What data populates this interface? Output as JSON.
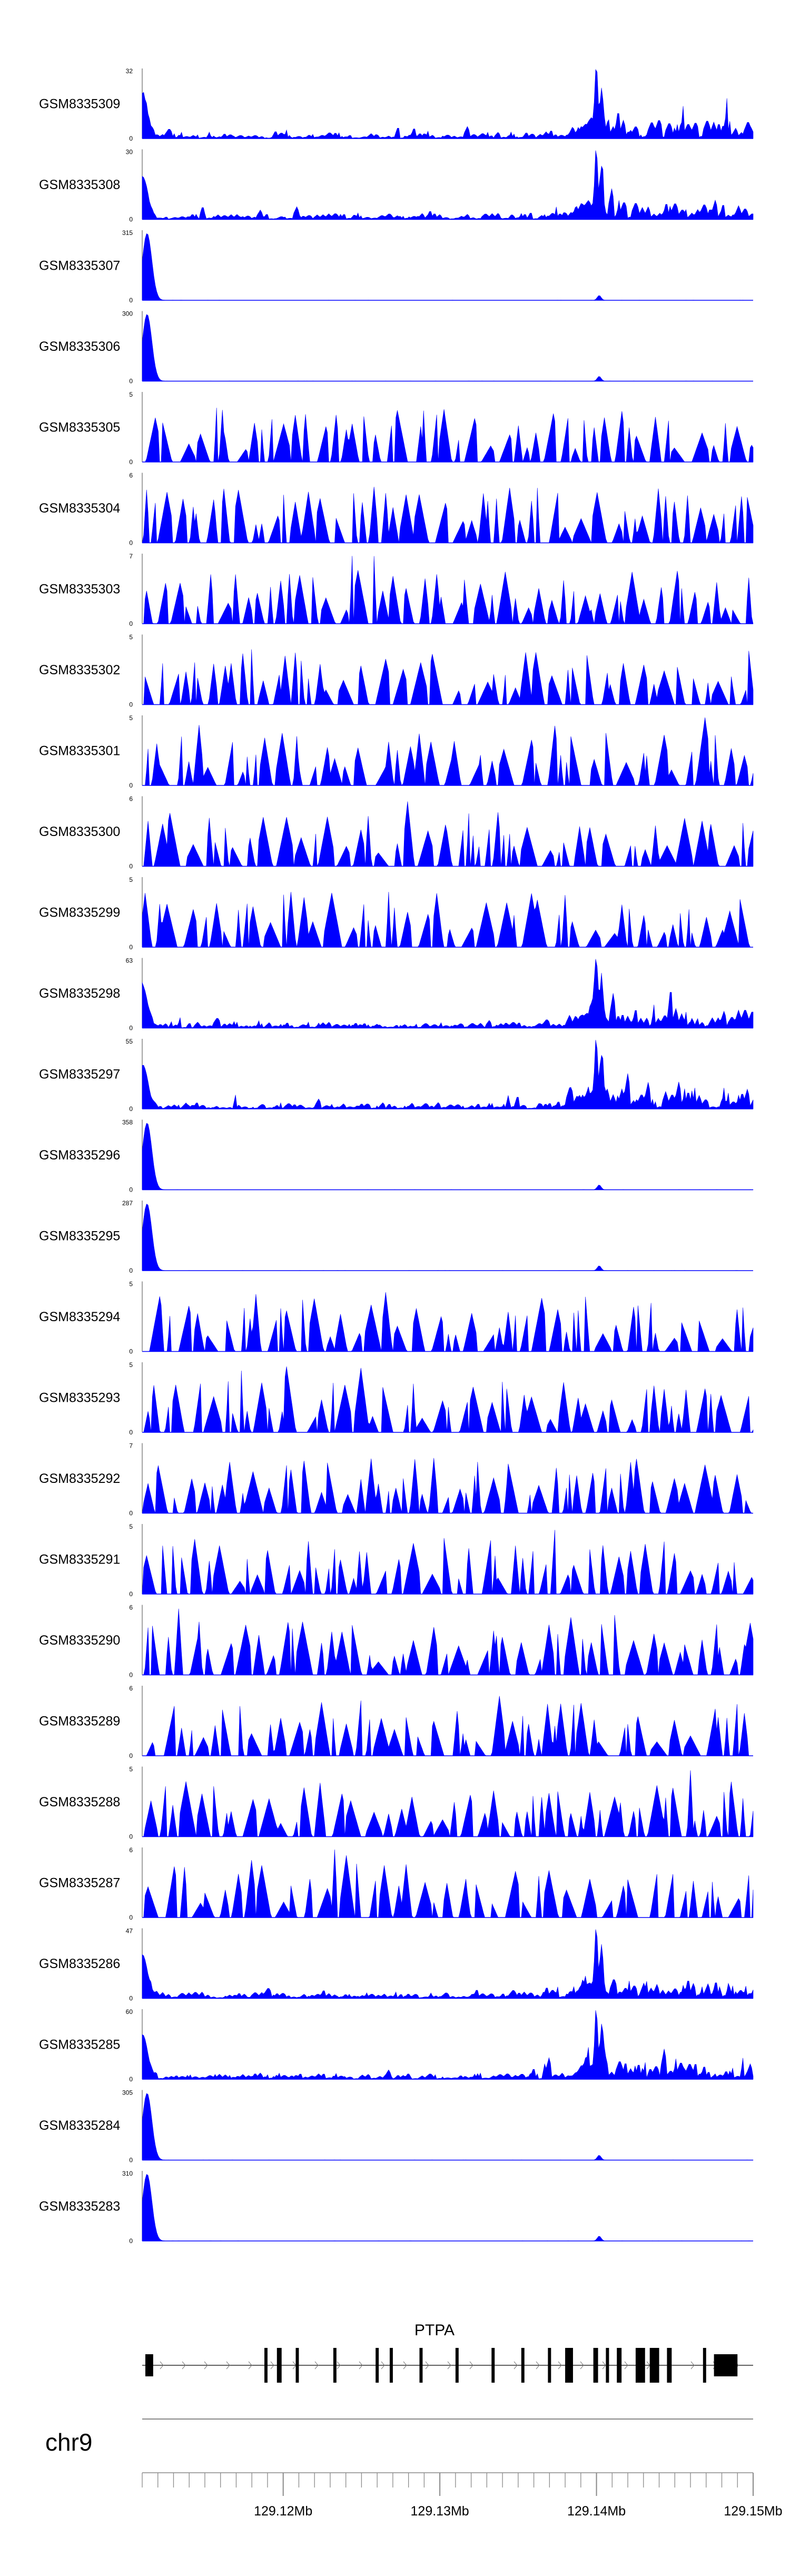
{
  "chart_data": {
    "type": "area",
    "title": "",
    "region": {
      "chromosome": "chr9",
      "xlim": [
        129.111,
        129.15
      ],
      "x_ticks": [
        129.12,
        129.13,
        129.14,
        129.15
      ],
      "x_tick_labels": [
        "129.12Mb",
        "129.13Mb",
        "129.14Mb",
        "129.15Mb"
      ]
    },
    "tracks": [
      {
        "name": "GSM8335309",
        "ymin": 0,
        "ymax": 32,
        "ylabel_max": "32",
        "ylabel_min": "0",
        "profile": "atac"
      },
      {
        "name": "GSM8335308",
        "ymin": 0,
        "ymax": 30,
        "ylabel_max": "30",
        "ylabel_min": "0",
        "profile": "atac"
      },
      {
        "name": "GSM8335307",
        "ymin": 0,
        "ymax": 315,
        "ylabel_max": "315",
        "ylabel_min": "0",
        "profile": "spike"
      },
      {
        "name": "GSM8335306",
        "ymin": 0,
        "ymax": 300,
        "ylabel_max": "300",
        "ylabel_min": "0",
        "profile": "spike"
      },
      {
        "name": "GSM8335305",
        "ymin": 0,
        "ymax": 5,
        "ylabel_max": "5",
        "ylabel_min": "0",
        "profile": "noise"
      },
      {
        "name": "GSM8335304",
        "ymin": 0,
        "ymax": 6,
        "ylabel_max": "6",
        "ylabel_min": "0",
        "profile": "noise"
      },
      {
        "name": "GSM8335303",
        "ymin": 0,
        "ymax": 7,
        "ylabel_max": "7",
        "ylabel_min": "0",
        "profile": "noise"
      },
      {
        "name": "GSM8335302",
        "ymin": 0,
        "ymax": 5,
        "ylabel_max": "5",
        "ylabel_min": "0",
        "profile": "noise"
      },
      {
        "name": "GSM8335301",
        "ymin": 0,
        "ymax": 5,
        "ylabel_max": "5",
        "ylabel_min": "0",
        "profile": "noise"
      },
      {
        "name": "GSM8335300",
        "ymin": 0,
        "ymax": 6,
        "ylabel_max": "6",
        "ylabel_min": "0",
        "profile": "noise"
      },
      {
        "name": "GSM8335299",
        "ymin": 0,
        "ymax": 5,
        "ylabel_max": "5",
        "ylabel_min": "0",
        "profile": "noise"
      },
      {
        "name": "GSM8335298",
        "ymin": 0,
        "ymax": 63,
        "ylabel_max": "63",
        "ylabel_min": "0",
        "profile": "atac"
      },
      {
        "name": "GSM8335297",
        "ymin": 0,
        "ymax": 55,
        "ylabel_max": "55",
        "ylabel_min": "0",
        "profile": "atac"
      },
      {
        "name": "GSM8335296",
        "ymin": 0,
        "ymax": 358,
        "ylabel_max": "358",
        "ylabel_min": "0",
        "profile": "spike"
      },
      {
        "name": "GSM8335295",
        "ymin": 0,
        "ymax": 287,
        "ylabel_max": "287",
        "ylabel_min": "0",
        "profile": "spike"
      },
      {
        "name": "GSM8335294",
        "ymin": 0,
        "ymax": 5,
        "ylabel_max": "5",
        "ylabel_min": "0",
        "profile": "noise"
      },
      {
        "name": "GSM8335293",
        "ymin": 0,
        "ymax": 5,
        "ylabel_max": "5",
        "ylabel_min": "0",
        "profile": "noise"
      },
      {
        "name": "GSM8335292",
        "ymin": 0,
        "ymax": 7,
        "ylabel_max": "7",
        "ylabel_min": "0",
        "profile": "noise"
      },
      {
        "name": "GSM8335291",
        "ymin": 0,
        "ymax": 5,
        "ylabel_max": "5",
        "ylabel_min": "0",
        "profile": "noise"
      },
      {
        "name": "GSM8335290",
        "ymin": 0,
        "ymax": 6,
        "ylabel_max": "6",
        "ylabel_min": "0",
        "profile": "noise"
      },
      {
        "name": "GSM8335289",
        "ymin": 0,
        "ymax": 6,
        "ylabel_max": "6",
        "ylabel_min": "0",
        "profile": "noise"
      },
      {
        "name": "GSM8335288",
        "ymin": 0,
        "ymax": 5,
        "ylabel_max": "5",
        "ylabel_min": "0",
        "profile": "noise"
      },
      {
        "name": "GSM8335287",
        "ymin": 0,
        "ymax": 6,
        "ylabel_max": "6",
        "ylabel_min": "0",
        "profile": "noise"
      },
      {
        "name": "GSM8335286",
        "ymin": 0,
        "ymax": 47,
        "ylabel_max": "47",
        "ylabel_min": "0",
        "profile": "atac"
      },
      {
        "name": "GSM8335285",
        "ymin": 0,
        "ymax": 60,
        "ylabel_max": "60",
        "ylabel_min": "0",
        "profile": "atac"
      },
      {
        "name": "GSM8335284",
        "ymin": 0,
        "ymax": 305,
        "ylabel_max": "305",
        "ylabel_min": "0",
        "profile": "spike"
      },
      {
        "name": "GSM8335283",
        "ymin": 0,
        "ymax": 310,
        "ylabel_max": "310",
        "ylabel_min": "0",
        "profile": "spike"
      }
    ],
    "gene": {
      "name": "PTPA",
      "strand": "+",
      "start": 129.111,
      "end": 129.15,
      "exons": [
        {
          "start": 129.1112,
          "end": 129.1117,
          "coding": false
        },
        {
          "start": 129.1188,
          "end": 129.119,
          "coding": true
        },
        {
          "start": 129.1196,
          "end": 129.1199,
          "coding": true
        },
        {
          "start": 129.1208,
          "end": 129.121,
          "coding": true
        },
        {
          "start": 129.1232,
          "end": 129.1234,
          "coding": true
        },
        {
          "start": 129.1259,
          "end": 129.1261,
          "coding": true
        },
        {
          "start": 129.1268,
          "end": 129.127,
          "coding": true
        },
        {
          "start": 129.1287,
          "end": 129.1289,
          "coding": true
        },
        {
          "start": 129.131,
          "end": 129.1312,
          "coding": true
        },
        {
          "start": 129.1333,
          "end": 129.1335,
          "coding": true
        },
        {
          "start": 129.1352,
          "end": 129.1354,
          "coding": true
        },
        {
          "start": 129.1369,
          "end": 129.1371,
          "coding": true
        },
        {
          "start": 129.138,
          "end": 129.1385,
          "coding": true
        },
        {
          "start": 129.1398,
          "end": 129.1401,
          "coding": true
        },
        {
          "start": 129.1406,
          "end": 129.1408,
          "coding": true
        },
        {
          "start": 129.1413,
          "end": 129.1416,
          "coding": true
        },
        {
          "start": 129.1425,
          "end": 129.1431,
          "coding": true
        },
        {
          "start": 129.1434,
          "end": 129.144,
          "coding": true
        },
        {
          "start": 129.1445,
          "end": 129.1448,
          "coding": true
        },
        {
          "start": 129.1468,
          "end": 129.147,
          "coding": true
        },
        {
          "start": 129.1475,
          "end": 129.149,
          "coding": false
        }
      ]
    },
    "colors": {
      "signal": "#0000ff",
      "gene": "#000000",
      "axis": "#888888",
      "text": "#000000"
    }
  }
}
